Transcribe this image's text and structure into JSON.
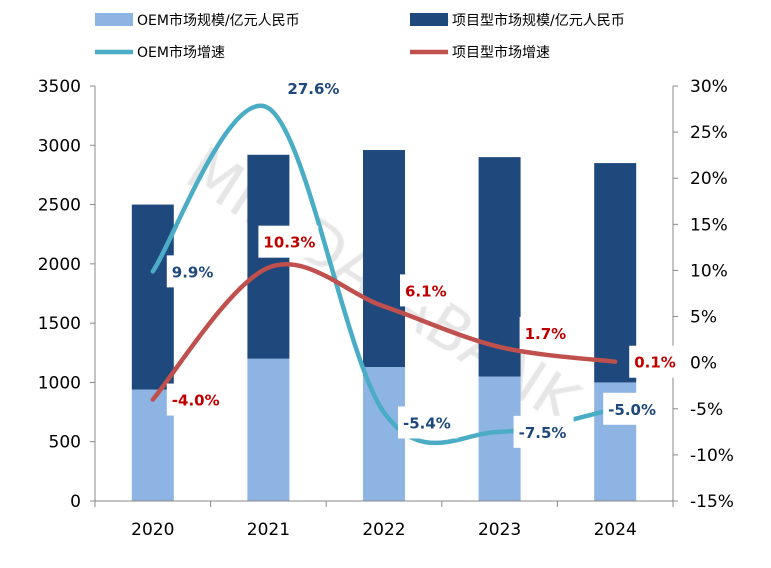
{
  "chart_data": {
    "type": "bar",
    "categories": [
      "2020",
      "2021",
      "2022",
      "2023",
      "2024"
    ],
    "series": [
      {
        "name": "OEM市场规模/亿元人民币",
        "kind": "bar",
        "axis": "left",
        "color": "#8EB4E3",
        "values": [
          940,
          1200,
          1130,
          1050,
          1000
        ]
      },
      {
        "name": "项目型市场规模/亿元人民币",
        "kind": "bar",
        "axis": "left",
        "color": "#1F497D",
        "values": [
          1560,
          1720,
          1830,
          1850,
          1850
        ]
      },
      {
        "name": "OEM市场增速",
        "kind": "line",
        "axis": "right",
        "color": "#4BACC6",
        "values": [
          9.9,
          27.6,
          -5.4,
          -7.5,
          -5.0
        ],
        "labels": [
          "9.9%",
          "27.6%",
          "-5.4%",
          "-7.5%",
          "-5.0%"
        ],
        "label_color": "#1F497D"
      },
      {
        "name": "项目型市场增速",
        "kind": "line",
        "axis": "right",
        "color": "#C0504D",
        "values": [
          -4.0,
          10.3,
          6.1,
          1.7,
          0.1
        ],
        "labels": [
          "-4.0%",
          "10.3%",
          "6.1%",
          "1.7%",
          "0.1%"
        ],
        "label_color": "#C00000"
      }
    ],
    "stacked": true,
    "ylim": [
      0,
      3500
    ],
    "yticks": [
      "0",
      "500",
      "1000",
      "1500",
      "2000",
      "2500",
      "3000",
      "3500"
    ],
    "y2lim": [
      -15,
      30
    ],
    "y2ticks": [
      "-15%",
      "-10%",
      "-5%",
      "0%",
      "5%",
      "10%",
      "15%",
      "20%",
      "25%",
      "30%"
    ],
    "grid": false,
    "legend": "top",
    "watermark": "MIR DATABANK"
  }
}
